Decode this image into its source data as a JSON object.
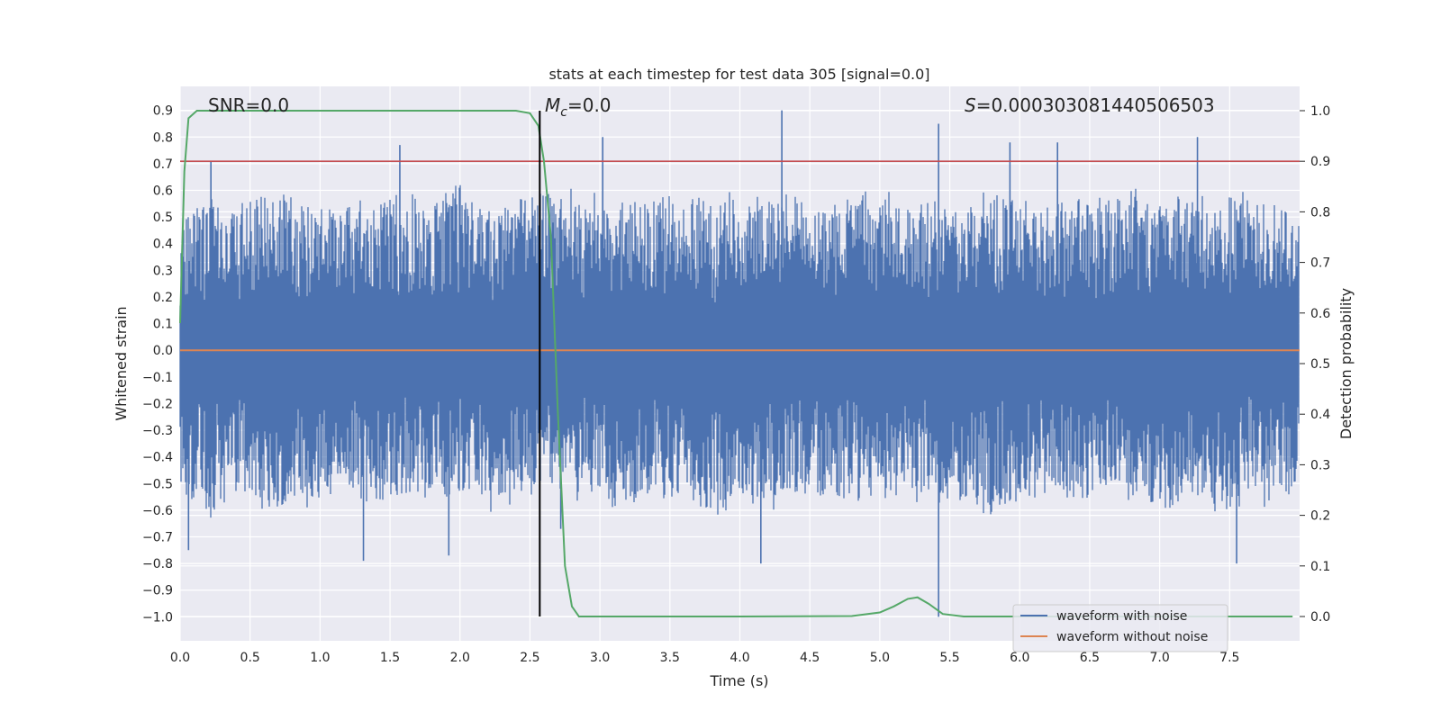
{
  "chart_data": {
    "type": "line",
    "title": "stats at each timestep for test data 305 [signal=0.0]",
    "xlabel": "Time (s)",
    "ylabel_left": "Whitened strain",
    "ylabel_right": "Detection probability",
    "xlim": [
      0.0,
      8.0
    ],
    "ylim_left": [
      -1.09,
      0.99
    ],
    "ylim_right": [
      -0.048,
      1.048
    ],
    "x_ticks": [
      0.0,
      0.5,
      1.0,
      1.5,
      2.0,
      2.5,
      3.0,
      3.5,
      4.0,
      4.5,
      5.0,
      5.5,
      6.0,
      6.5,
      7.0,
      7.5
    ],
    "x_tick_labels": [
      "0.0",
      "0.5",
      "1.0",
      "1.5",
      "2.0",
      "2.5",
      "3.0",
      "3.5",
      "4.0",
      "4.5",
      "5.0",
      "5.5",
      "6.0",
      "6.5",
      "7.0",
      "7.5"
    ],
    "y_left_ticks": [
      0.9,
      0.8,
      0.7,
      0.6,
      0.5,
      0.4,
      0.3,
      0.2,
      0.1,
      0.0,
      -0.1,
      -0.2,
      -0.3,
      -0.4,
      -0.5,
      -0.6,
      -0.7,
      -0.8,
      -0.9,
      -1.0
    ],
    "y_left_tick_labels": [
      "0.9",
      "0.8",
      "0.7",
      "0.6",
      "0.5",
      "0.4",
      "0.3",
      "0.2",
      "0.1",
      "0.0",
      "−0.1",
      "−0.2",
      "−0.3",
      "−0.4",
      "−0.5",
      "−0.6",
      "−0.7",
      "−0.8",
      "−0.9",
      "−1.0"
    ],
    "y_right_ticks": [
      1.0,
      0.9,
      0.8,
      0.7,
      0.6,
      0.5,
      0.4,
      0.3,
      0.2,
      0.1,
      0.0
    ],
    "y_right_tick_labels": [
      "1.0",
      "0.9",
      "0.8",
      "0.7",
      "0.6",
      "0.5",
      "0.4",
      "0.3",
      "0.2",
      "0.1",
      "0.0"
    ],
    "grid": true,
    "legend_position": "bottom-right",
    "annotations": {
      "snr": "SNR=0.0",
      "mc_symbol": "M",
      "mc_sub": "c",
      "mc_value": "=0.0",
      "s_symbol": "S",
      "s_value": "=0.000303081440506503"
    },
    "series": [
      {
        "name": "waveform with noise",
        "color": "#4c72b0",
        "axis": "left",
        "description_values": "dense noise envelope",
        "envelope": {
          "x": [
            0.0,
            0.2,
            0.4,
            0.6,
            0.8,
            1.0,
            1.2,
            1.4,
            1.6,
            1.8,
            2.0,
            2.2,
            2.4,
            2.6,
            2.8,
            3.0,
            3.2,
            3.4,
            3.6,
            3.8,
            4.0,
            4.2,
            4.4,
            4.6,
            4.8,
            5.0,
            5.2,
            5.4,
            5.6,
            5.8,
            6.0,
            6.2,
            6.4,
            6.6,
            6.8,
            7.0,
            7.2,
            7.4,
            7.6,
            7.8,
            8.0
          ],
          "upper": [
            0.48,
            0.55,
            0.52,
            0.58,
            0.56,
            0.5,
            0.54,
            0.52,
            0.57,
            0.53,
            0.6,
            0.5,
            0.55,
            0.58,
            0.6,
            0.57,
            0.54,
            0.55,
            0.56,
            0.52,
            0.58,
            0.55,
            0.56,
            0.52,
            0.54,
            0.58,
            0.55,
            0.56,
            0.52,
            0.58,
            0.57,
            0.54,
            0.56,
            0.55,
            0.6,
            0.56,
            0.58,
            0.55,
            0.57,
            0.53,
            0.5
          ],
          "lower": [
            -0.55,
            -0.6,
            -0.52,
            -0.58,
            -0.55,
            -0.56,
            -0.5,
            -0.57,
            -0.54,
            -0.55,
            -0.52,
            -0.58,
            -0.55,
            -0.5,
            -0.52,
            -0.56,
            -0.58,
            -0.54,
            -0.55,
            -0.6,
            -0.56,
            -0.58,
            -0.52,
            -0.55,
            -0.54,
            -0.56,
            -0.52,
            -0.58,
            -0.55,
            -0.6,
            -0.55,
            -0.54,
            -0.56,
            -0.5,
            -0.55,
            -0.56,
            -0.54,
            -0.58,
            -0.55,
            -0.56,
            -0.5
          ]
        },
        "spikes": [
          {
            "x": 0.22,
            "y": 0.71
          },
          {
            "x": 1.57,
            "y": 0.77
          },
          {
            "x": 1.31,
            "y": -0.79
          },
          {
            "x": 0.06,
            "y": -0.75
          },
          {
            "x": 1.92,
            "y": -0.77
          },
          {
            "x": 3.02,
            "y": 0.8
          },
          {
            "x": 4.3,
            "y": 0.9
          },
          {
            "x": 4.15,
            "y": -0.8
          },
          {
            "x": 5.42,
            "y": 0.85
          },
          {
            "x": 5.42,
            "y": -1.0
          },
          {
            "x": 5.93,
            "y": 0.78
          },
          {
            "x": 6.27,
            "y": 0.78
          },
          {
            "x": 7.27,
            "y": 0.8
          },
          {
            "x": 7.55,
            "y": -0.8
          },
          {
            "x": 2.72,
            "y": -0.67
          }
        ]
      },
      {
        "name": "waveform without noise",
        "color": "#dd8452",
        "axis": "left",
        "x": [
          0.0,
          8.0
        ],
        "y": [
          0.0,
          0.0
        ]
      },
      {
        "color": "#55a868",
        "axis": "right",
        "x": [
          0.0,
          0.03,
          0.06,
          0.12,
          0.3,
          1.0,
          2.0,
          2.4,
          2.5,
          2.56,
          2.6,
          2.65,
          2.7,
          2.75,
          2.8,
          2.85,
          3.0,
          4.0,
          4.8,
          5.0,
          5.1,
          5.2,
          5.27,
          5.35,
          5.45,
          5.6,
          6.0,
          7.0,
          7.95
        ],
        "y": [
          0.58,
          0.88,
          0.985,
          1.0,
          1.0,
          1.0,
          1.0,
          1.0,
          0.995,
          0.97,
          0.9,
          0.75,
          0.4,
          0.1,
          0.02,
          0.0,
          0.0,
          0.0,
          0.001,
          0.008,
          0.02,
          0.035,
          0.038,
          0.025,
          0.005,
          0.0,
          0.0,
          0.0,
          0.0
        ]
      }
    ],
    "threshold_line": {
      "color": "#c44e52",
      "axis": "right",
      "value": 0.9
    },
    "vertical_marker": {
      "color": "#000000",
      "x": 2.57,
      "y_top": 1.0,
      "y_bottom": 0.0,
      "axis": "right"
    },
    "legend": [
      {
        "label": "waveform with noise",
        "color": "#4c72b0"
      },
      {
        "label": "waveform without noise",
        "color": "#dd8452"
      }
    ],
    "colors": {
      "background": "#eaeaf2",
      "grid": "#ffffff"
    }
  }
}
